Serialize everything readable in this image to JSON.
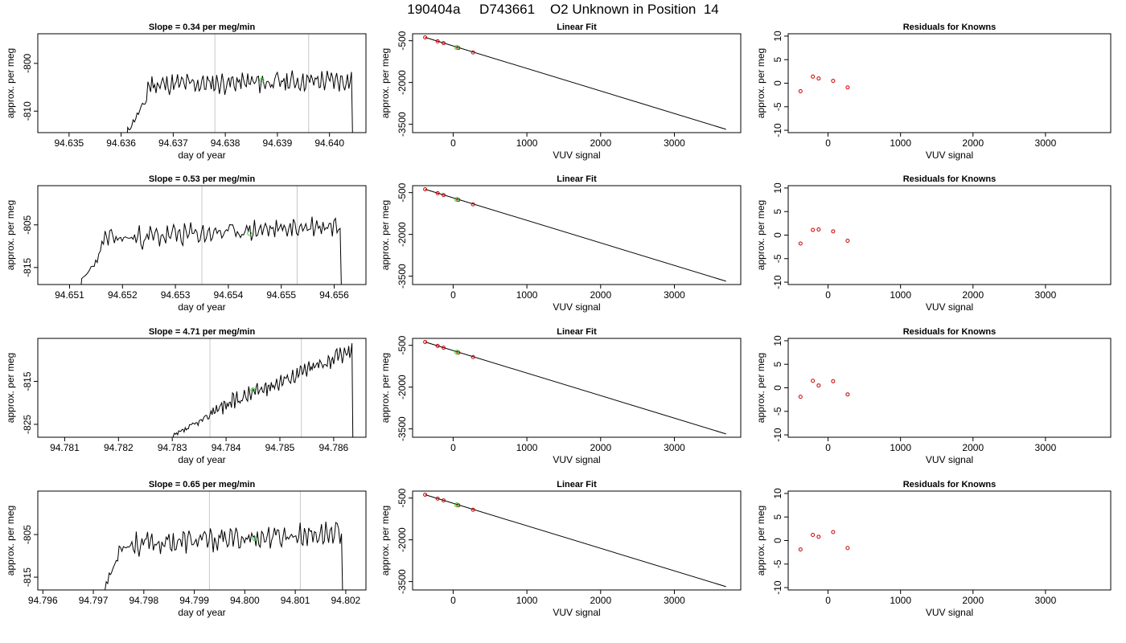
{
  "title": "190404a     D743661    O2 Unknown in Position  14",
  "chart_data": [
    {
      "id": "row1-trace",
      "type": "line",
      "title": "Slope =  0.34  per meg/min",
      "xlabel": "day of year",
      "ylabel": "approx. per meg",
      "xlim": [
        94.6344,
        94.6407
      ],
      "ylim": [
        -814.5,
        -793.8
      ],
      "xticks": [
        "94.635",
        "94.636",
        "94.637",
        "94.638",
        "94.639",
        "94.640"
      ],
      "yticks": [
        "-800",
        "-810"
      ],
      "vlines": [
        94.6378,
        94.6396
      ],
      "marker": {
        "x": 94.6387,
        "y": -803.5,
        "color": "#33cc33"
      },
      "series": [
        {
          "x_start": 94.6361,
          "x_end": 94.6405,
          "start": -814.5,
          "end": -814.5,
          "ramp_end": 94.6365,
          "rise_to": -807.5,
          "level_start": -804.5,
          "level_end": -803.5,
          "noise": 1.6,
          "seed": 11
        }
      ]
    },
    {
      "id": "row1-fit",
      "type": "scatter",
      "title": "Linear Fit",
      "xlabel": "VUV signal",
      "ylabel": "approx. per meg",
      "xlim": [
        -550,
        3900
      ],
      "ylim": [
        -3800,
        -250
      ],
      "xticks": [
        "0",
        "1000",
        "2000",
        "3000"
      ],
      "yticks": [
        "-500",
        "-2000",
        "-3500"
      ],
      "fit_line": {
        "x": [
          -380,
          3700
        ],
        "y": [
          -380,
          -3680
        ]
      },
      "knowns": {
        "x": [
          -380,
          -210,
          -130,
          70,
          270
        ],
        "y": [
          -380,
          -520,
          -585,
          -760,
          -920
        ]
      },
      "unknown": {
        "x": 50,
        "y": -745
      }
    },
    {
      "id": "row1-resid",
      "type": "scatter",
      "title": "Residuals for Knowns",
      "xlabel": "VUV signal",
      "ylabel": "approx. per meg",
      "xlim": [
        -550,
        3900
      ],
      "ylim": [
        -10.5,
        10.5
      ],
      "xticks": [
        "0",
        "1000",
        "2000",
        "3000"
      ],
      "yticks": [
        "-10",
        "-5",
        "0",
        "5",
        "10"
      ],
      "points": {
        "x": [
          -380,
          -210,
          -130,
          70,
          270
        ],
        "y": [
          -1.7,
          1.4,
          1.0,
          0.5,
          -0.9
        ]
      }
    },
    {
      "id": "row2-trace",
      "type": "line",
      "title": "Slope =  0.53  per meg/min",
      "xlabel": "day of year",
      "ylabel": "approx. per meg",
      "xlim": [
        94.6504,
        94.6566
      ],
      "ylim": [
        -819.0,
        -795.8
      ],
      "xticks": [
        "94.651",
        "94.652",
        "94.653",
        "94.654",
        "94.655",
        "94.656"
      ],
      "yticks": [
        "-805",
        "-815"
      ],
      "vlines": [
        94.6535,
        94.6553
      ],
      "marker": {
        "x": 94.6544,
        "y": -807.0,
        "color": "#33cc33"
      },
      "series": [
        {
          "x_start": 94.6512,
          "x_end": 94.6562,
          "start": -819.0,
          "end": -819.0,
          "ramp_end": 94.6516,
          "rise_to": -811.5,
          "level_start": -808.5,
          "level_end": -805.0,
          "noise": 1.9,
          "seed": 23
        }
      ]
    },
    {
      "id": "row2-fit",
      "type": "scatter",
      "title": "Linear Fit",
      "xlabel": "VUV signal",
      "ylabel": "approx. per meg",
      "xlim": [
        -550,
        3900
      ],
      "ylim": [
        -3800,
        -250
      ],
      "xticks": [
        "0",
        "1000",
        "2000",
        "3000"
      ],
      "yticks": [
        "-500",
        "-2000",
        "-3500"
      ],
      "fit_line": {
        "x": [
          -380,
          3700
        ],
        "y": [
          -380,
          -3680
        ]
      },
      "knowns": {
        "x": [
          -380,
          -210,
          -130,
          70,
          270
        ],
        "y": [
          -380,
          -520,
          -585,
          -760,
          -920
        ]
      },
      "unknown": {
        "x": 50,
        "y": -745
      }
    },
    {
      "id": "row2-resid",
      "type": "scatter",
      "title": "Residuals for Knowns",
      "xlabel": "VUV signal",
      "ylabel": "approx. per meg",
      "xlim": [
        -550,
        3900
      ],
      "ylim": [
        -10.5,
        10.5
      ],
      "xticks": [
        "0",
        "1000",
        "2000",
        "3000"
      ],
      "yticks": [
        "-10",
        "-5",
        "0",
        "5",
        "10"
      ],
      "points": {
        "x": [
          -380,
          -210,
          -130,
          70,
          270
        ],
        "y": [
          -1.8,
          1.1,
          1.2,
          0.8,
          -1.2
        ]
      }
    },
    {
      "id": "row3-trace",
      "type": "line",
      "title": "Slope =  4.71  per meg/min",
      "xlabel": "day of year",
      "ylabel": "approx. per meg",
      "xlim": [
        94.7805,
        94.7866
      ],
      "ylim": [
        -828.0,
        -805.0
      ],
      "xticks": [
        "94.781",
        "94.782",
        "94.783",
        "94.784",
        "94.785",
        "94.786"
      ],
      "yticks": [
        "-815",
        "-825"
      ],
      "vlines": [
        94.7837,
        94.7854
      ],
      "marker": {
        "x": 94.7845,
        "y": -817.0,
        "color": "#33cc33"
      },
      "series": [
        {
          "x_start": 94.783,
          "x_end": 94.7864,
          "start": -828.0,
          "end": -828.0,
          "ramp_end": 94.7837,
          "rise_to": -823.0,
          "level_start": -822.0,
          "level_end": -807.5,
          "noise": 1.4,
          "seed": 37
        }
      ]
    },
    {
      "id": "row3-fit",
      "type": "scatter",
      "title": "Linear Fit",
      "xlabel": "VUV signal",
      "ylabel": "approx. per meg",
      "xlim": [
        -550,
        3900
      ],
      "ylim": [
        -3800,
        -250
      ],
      "xticks": [
        "0",
        "1000",
        "2000",
        "3000"
      ],
      "yticks": [
        "-500",
        "-2000",
        "-3500"
      ],
      "fit_line": {
        "x": [
          -380,
          3700
        ],
        "y": [
          -380,
          -3680
        ]
      },
      "knowns": {
        "x": [
          -380,
          -210,
          -130,
          70,
          270
        ],
        "y": [
          -380,
          -520,
          -585,
          -760,
          -920
        ]
      },
      "unknown": {
        "x": 50,
        "y": -745
      }
    },
    {
      "id": "row3-resid",
      "type": "scatter",
      "title": "Residuals for Knowns",
      "xlabel": "VUV signal",
      "ylabel": "approx. per meg",
      "xlim": [
        -550,
        3900
      ],
      "ylim": [
        -10.5,
        10.5
      ],
      "xticks": [
        "0",
        "1000",
        "2000",
        "3000"
      ],
      "yticks": [
        "-10",
        "-5",
        "0",
        "5",
        "10"
      ],
      "points": {
        "x": [
          -380,
          -210,
          -130,
          70,
          270
        ],
        "y": [
          -1.9,
          1.5,
          0.5,
          1.4,
          -1.4
        ]
      }
    },
    {
      "id": "row4-trace",
      "type": "line",
      "title": "Slope =  0.65  per meg/min",
      "xlabel": "day of year",
      "ylabel": "approx. per meg",
      "xlim": [
        94.7959,
        94.8024
      ],
      "ylim": [
        -818.0,
        -794.8
      ],
      "xticks": [
        "94.796",
        "94.797",
        "94.798",
        "94.799",
        "94.800",
        "94.801",
        "94.802"
      ],
      "yticks": [
        "-805",
        "-815"
      ],
      "vlines": [
        94.7993,
        94.8011
      ],
      "marker": {
        "x": 94.8002,
        "y": -806.0,
        "color": "#33cc33"
      },
      "series": [
        {
          "x_start": 94.7972,
          "x_end": 94.802,
          "start": -818.0,
          "end": -818.0,
          "ramp_end": 94.7975,
          "rise_to": -810.0,
          "level_start": -807.5,
          "level_end": -804.5,
          "noise": 2.0,
          "seed": 53
        }
      ]
    },
    {
      "id": "row4-fit",
      "type": "scatter",
      "title": "Linear Fit",
      "xlabel": "VUV signal",
      "ylabel": "approx. per meg",
      "xlim": [
        -550,
        3900
      ],
      "ylim": [
        -3800,
        -250
      ],
      "xticks": [
        "0",
        "1000",
        "2000",
        "3000"
      ],
      "yticks": [
        "-500",
        "-2000",
        "-3500"
      ],
      "fit_line": {
        "x": [
          -380,
          3700
        ],
        "y": [
          -380,
          -3680
        ]
      },
      "knowns": {
        "x": [
          -380,
          -210,
          -130,
          70,
          270
        ],
        "y": [
          -380,
          -520,
          -585,
          -760,
          -920
        ]
      },
      "unknown": {
        "x": 50,
        "y": -745
      }
    },
    {
      "id": "row4-resid",
      "type": "scatter",
      "title": "Residuals for Knowns",
      "xlabel": "VUV signal",
      "ylabel": "approx. per meg",
      "xlim": [
        -550,
        3900
      ],
      "ylim": [
        -10.5,
        10.5
      ],
      "xticks": [
        "0",
        "1000",
        "2000",
        "3000"
      ],
      "yticks": [
        "-10",
        "-5",
        "0",
        "5",
        "10"
      ],
      "points": {
        "x": [
          -380,
          -210,
          -130,
          70,
          270
        ],
        "y": [
          -1.9,
          1.2,
          0.8,
          1.8,
          -1.6
        ]
      }
    }
  ]
}
